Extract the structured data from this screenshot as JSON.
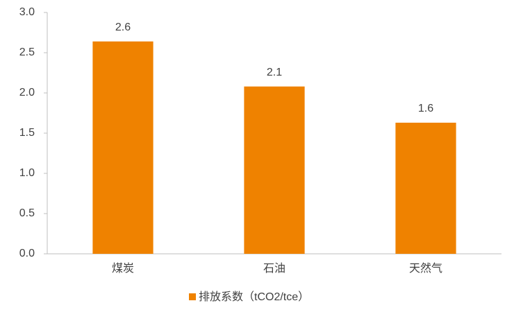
{
  "chart_data": {
    "type": "bar",
    "categories": [
      "煤炭",
      "石油",
      "天然气"
    ],
    "series": [
      {
        "name": "排放系数（tCO2/tce）",
        "color": "#ef8200",
        "values": [
          2.64,
          2.08,
          1.63
        ],
        "value_labels": [
          "2.6",
          "2.1",
          "1.6"
        ]
      }
    ],
    "ylim": [
      0,
      3
    ],
    "yticks": [
      {
        "value": 0,
        "label": "0.0"
      },
      0.5,
      {
        "value": 1,
        "label": "1.0"
      },
      1.5,
      {
        "value": 2,
        "label": "2.0"
      },
      2.5,
      {
        "value": 3,
        "label": "3.0"
      }
    ],
    "grid": false,
    "legend": "bottom"
  }
}
